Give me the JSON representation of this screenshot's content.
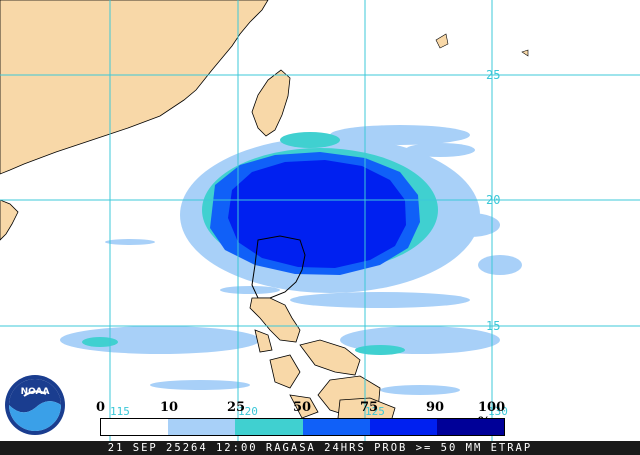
{
  "colors": {
    "land": "#f8d8a8",
    "ocean": "#ffffff",
    "grid": "#3cc8d8",
    "band_10": "#a8d0f8",
    "band_25": "#40d0d0",
    "band_50": "#1060f8",
    "band_75": "#0020f0",
    "band_90": "#000098"
  },
  "grid": {
    "lat_labels": [
      "25",
      "20",
      "15"
    ],
    "lon_labels": [
      "115",
      "120",
      "125",
      "130"
    ]
  },
  "legend": {
    "ticks": [
      "0",
      "10",
      "25",
      "50",
      "75",
      "90",
      "100 %"
    ],
    "bands": [
      "#ffffff",
      "#a8d0f8",
      "#40d0d0",
      "#1060f8",
      "#0020f0",
      "#000098"
    ]
  },
  "footer": {
    "caption": "21 SEP 25264 12:00 RAGASA 24HRS PROB >= 50 MM ETRAP"
  },
  "logo": {
    "text": "NOAA"
  }
}
